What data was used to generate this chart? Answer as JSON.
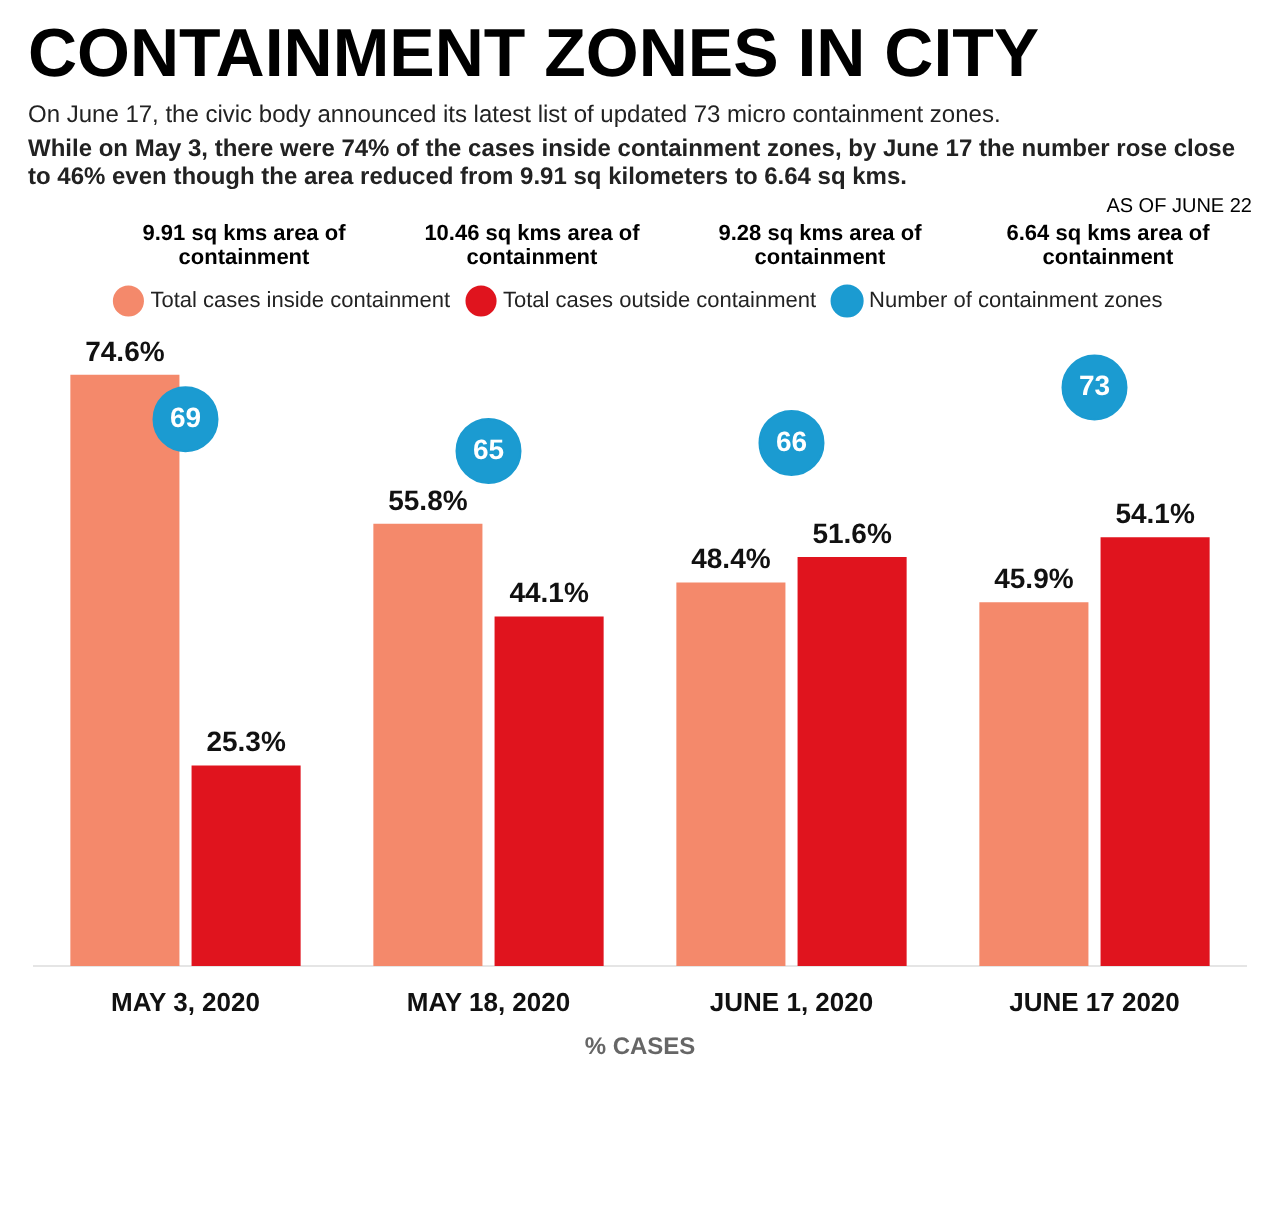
{
  "chart_data": {
    "type": "bar",
    "title": "CONTAINMENT ZONES IN CITY",
    "subtitle": "On June 17, the civic body announced its latest list of updated 73 micro containment zones.",
    "annotations": [
      "While on May 3, there were 74% of the cases inside containment zones, by June 17 the number rose close to 46% even though the area reduced from 9.91 sq kilometers to 6.64 sq kms.",
      "AS OF JUNE 22",
      "9.91 sq kms area of containment",
      "10.46 sq kms area of containment",
      "9.28 sq kms area of containment",
      "6.64 sq kms area of containment"
    ],
    "categories": [
      "MAY 3, 2020",
      "MAY 18, 2020",
      "JUNE 1, 2020",
      "JUNE 17 2020"
    ],
    "xlabel": "% CASES",
    "series": [
      {
        "name": "Total cases inside containment",
        "color": "#f4896b",
        "values": [
          74.6,
          55.8,
          48.4,
          45.9
        ],
        "value_labels": [
          "74.6%",
          "55.8%",
          "48.4%",
          "45.9%"
        ]
      },
      {
        "name": "Total cases outside containment",
        "color": "#e0141e",
        "values": [
          25.3,
          44.1,
          51.6,
          54.1
        ],
        "value_labels": [
          "25.3%",
          "44.1%",
          "51.6%",
          "54.1%"
        ]
      },
      {
        "name": "Number of containment zones",
        "type": "scatter",
        "color": "#1b9bd1",
        "values": [
          69,
          65,
          66,
          73
        ],
        "value_labels": [
          "69",
          "65",
          "66",
          "73"
        ]
      }
    ],
    "marker": "circle",
    "legend": "top",
    "grid": false
  }
}
